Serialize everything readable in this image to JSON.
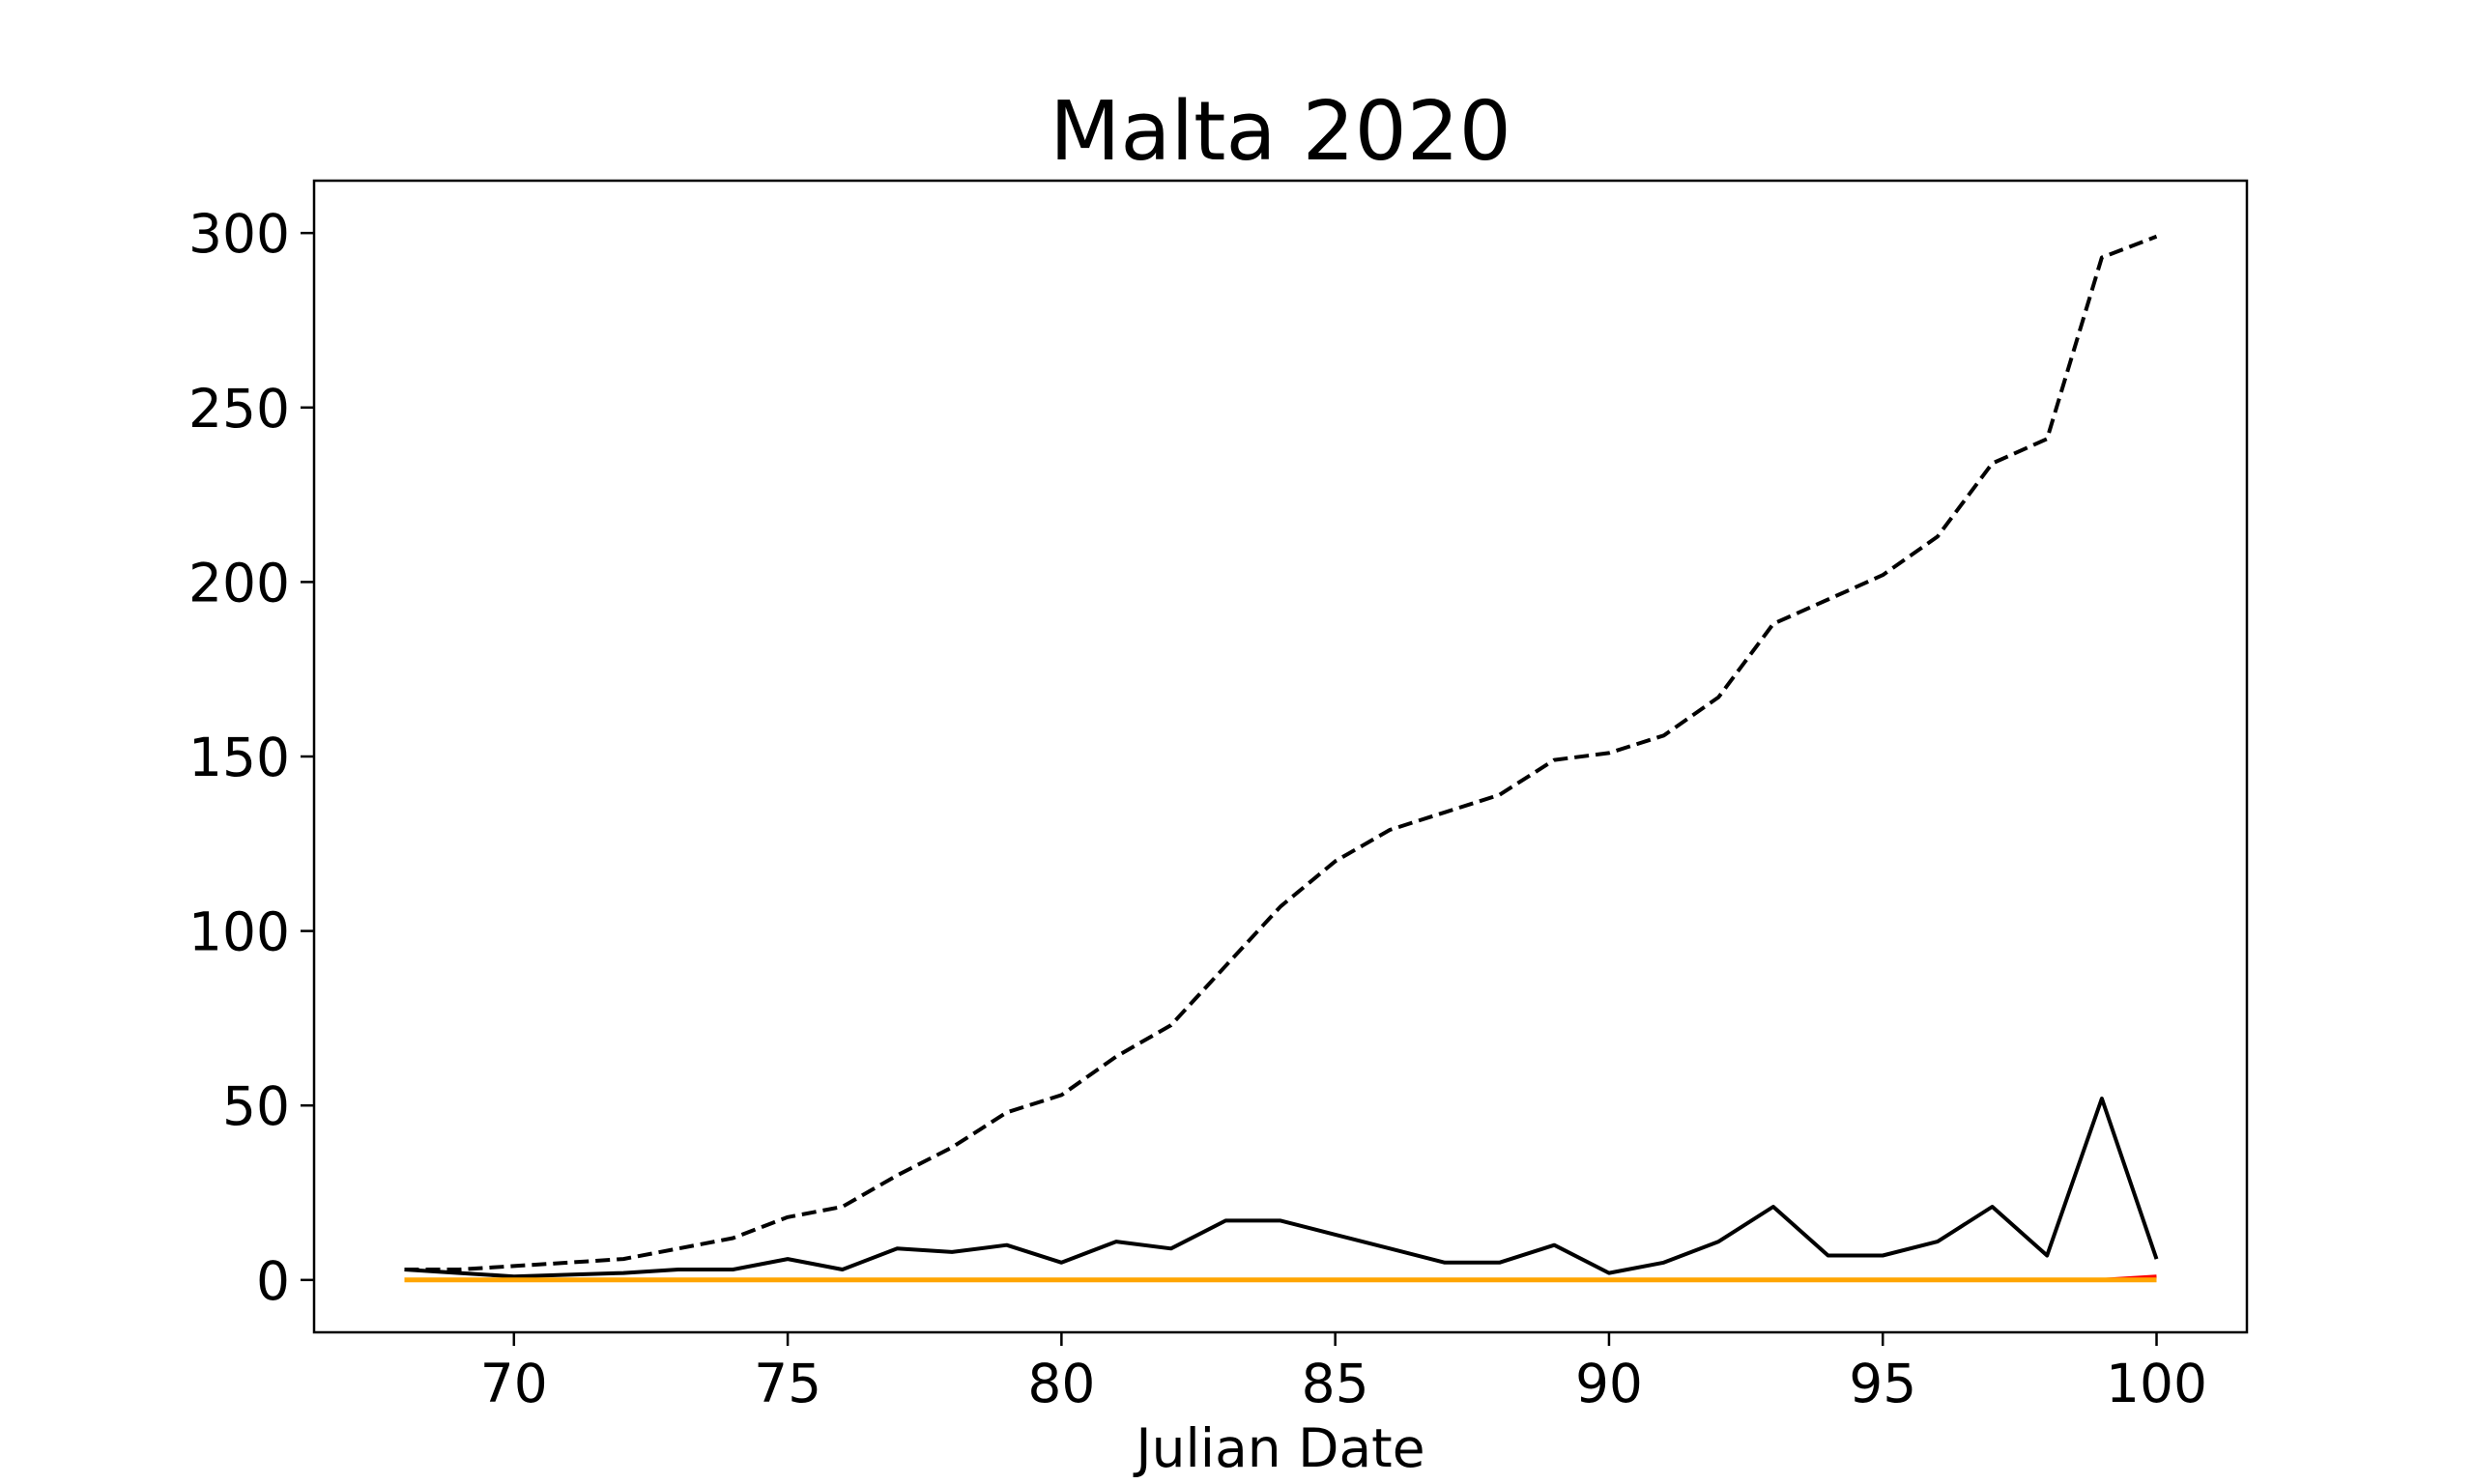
{
  "chart_data": {
    "type": "line",
    "title": "Malta 2020",
    "xlabel": "Julian Date",
    "ylabel": "",
    "xlim": [
      66.35,
      101.65
    ],
    "ylim": [
      -15,
      315
    ],
    "xticks": [
      70,
      75,
      80,
      85,
      90,
      95,
      100
    ],
    "yticks": [
      0,
      50,
      100,
      150,
      200,
      250,
      300
    ],
    "grid": false,
    "legend": "none",
    "x": [
      68,
      69,
      70,
      71,
      72,
      73,
      74,
      75,
      76,
      77,
      78,
      79,
      80,
      81,
      82,
      83,
      84,
      85,
      86,
      87,
      88,
      89,
      90,
      91,
      92,
      93,
      94,
      95,
      96,
      97,
      98,
      99,
      100
    ],
    "series": [
      {
        "style": "dashed",
        "color": "#000000",
        "values": [
          3,
          3,
          4,
          5,
          6,
          9,
          12,
          18,
          21,
          30,
          38,
          48,
          53,
          64,
          73,
          90,
          107,
          120,
          129,
          134,
          139,
          149,
          151,
          156,
          167,
          188,
          195,
          202,
          213,
          234,
          241,
          293,
          299
        ]
      },
      {
        "style": "solid",
        "color": "#000000",
        "values": [
          3,
          2,
          1,
          1.5,
          2,
          3,
          3,
          6,
          3,
          9,
          8,
          10,
          5,
          11,
          9,
          17,
          17,
          13,
          9,
          5,
          5,
          10,
          2,
          5,
          11,
          21,
          7,
          7,
          11,
          21,
          7,
          52,
          6
        ]
      },
      {
        "style": "solid",
        "color": "#ff0000",
        "values": [
          0,
          0,
          0,
          0,
          0,
          0,
          0,
          0,
          0,
          0,
          0,
          0,
          0,
          0,
          0,
          0,
          0,
          0,
          0,
          0,
          0,
          0,
          0,
          0,
          0,
          0,
          0,
          0,
          0,
          0,
          0,
          0,
          1
        ]
      },
      {
        "style": "solid",
        "color": "#ffa500",
        "values": [
          0,
          0,
          0,
          0,
          0,
          0,
          0,
          0,
          0,
          0,
          0,
          0,
          0,
          0,
          0,
          0,
          0,
          0,
          0,
          0,
          0,
          0,
          0,
          0,
          0,
          0,
          0,
          0,
          0,
          0,
          0,
          0,
          0
        ]
      }
    ]
  }
}
